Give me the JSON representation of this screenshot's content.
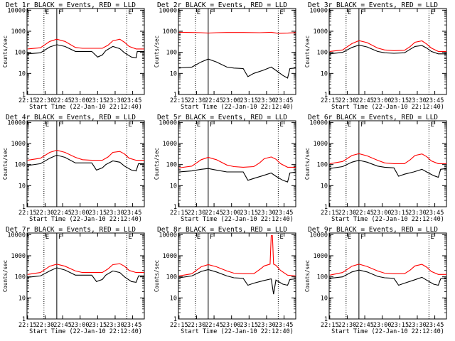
{
  "figure": {
    "xlabel": "Start Time (22-Jan-10 22:12:40)",
    "ylabel": "Counts/sec",
    "xticks": [
      "22:15",
      "22:30",
      "22:45",
      "23:00",
      "23:15",
      "23:30",
      "23:45"
    ],
    "yticks": [
      "1",
      "10",
      "100",
      "1000",
      "10000"
    ],
    "marker_labels": [
      "E",
      "F",
      "E"
    ],
    "colors": {
      "events": "#000000",
      "lld": "#ff0000",
      "axes": "#000000"
    }
  },
  "chart_data": [
    {
      "type": "line",
      "title": "Det 1r BLACK = Events, RED = LLD",
      "x_range_min": [
        2.5,
        103
      ],
      "ylim": [
        1,
        12000
      ],
      "y_scale": "log",
      "markers_min": [
        17,
        28,
        88
      ],
      "series": [
        {
          "name": "Events",
          "color": "#000000",
          "x_min": [
            3,
            14,
            22,
            28,
            35,
            44,
            50,
            58,
            63,
            67,
            70,
            76,
            82,
            86,
            92,
            96,
            97,
            103
          ],
          "values": [
            85,
            95,
            180,
            230,
            190,
            110,
            110,
            110,
            60,
            75,
            120,
            190,
            150,
            95,
            60,
            55,
            110,
            110
          ]
        },
        {
          "name": "LLD",
          "color": "#ff0000",
          "x_min": [
            3,
            14,
            22,
            28,
            35,
            44,
            50,
            58,
            67,
            72,
            76,
            82,
            86,
            90,
            96,
            103
          ],
          "values": [
            145,
            165,
            330,
            420,
            330,
            170,
            155,
            155,
            155,
            220,
            350,
            420,
            300,
            190,
            145,
            145
          ]
        }
      ]
    },
    {
      "type": "line",
      "title": "Det 2r BLACK = Events, RED = LLD",
      "x_range_min": [
        2.5,
        103
      ],
      "ylim": [
        1,
        12000
      ],
      "y_scale": "log",
      "markers_min": [
        17,
        28,
        88
      ],
      "series": [
        {
          "name": "Events",
          "color": "#000000",
          "x_min": [
            3,
            14,
            22,
            28,
            35,
            44,
            50,
            58,
            62,
            67,
            75,
            82,
            86,
            92,
            96,
            98,
            103
          ],
          "values": [
            18,
            20,
            35,
            48,
            35,
            20,
            18,
            17,
            7,
            10,
            14,
            20,
            14,
            8,
            6,
            17,
            18
          ]
        },
        {
          "name": "LLD",
          "color": "#ff0000",
          "x_min": [
            3,
            14,
            22,
            28,
            35,
            44,
            58,
            72,
            82,
            88,
            96,
            103
          ],
          "values": [
            900,
            880,
            860,
            820,
            860,
            880,
            880,
            860,
            900,
            800,
            820,
            870
          ]
        }
      ]
    },
    {
      "type": "line",
      "title": "Det 3r BLACK = Events, RED = LLD",
      "x_range_min": [
        2.5,
        103
      ],
      "ylim": [
        1,
        12000
      ],
      "y_scale": "log",
      "markers_min": [
        17,
        28,
        88
      ],
      "series": [
        {
          "name": "Events",
          "color": "#000000",
          "x_min": [
            3,
            14,
            22,
            28,
            35,
            44,
            50,
            58,
            67,
            72,
            76,
            82,
            86,
            90,
            96,
            103
          ],
          "values": [
            85,
            100,
            170,
            220,
            180,
            110,
            95,
            90,
            95,
            140,
            190,
            210,
            160,
            110,
            85,
            85
          ]
        },
        {
          "name": "LLD",
          "color": "#ff0000",
          "x_min": [
            3,
            14,
            22,
            28,
            35,
            44,
            50,
            58,
            67,
            72,
            76,
            82,
            86,
            90,
            96,
            103
          ],
          "values": [
            110,
            130,
            260,
            360,
            290,
            160,
            130,
            120,
            125,
            190,
            300,
            350,
            250,
            160,
            110,
            110
          ]
        }
      ]
    },
    {
      "type": "line",
      "title": "Det 4r BLACK = Events, RED = LLD",
      "x_range_min": [
        2.5,
        103
      ],
      "ylim": [
        1,
        12000
      ],
      "y_scale": "log",
      "markers_min": [
        17,
        28,
        88
      ],
      "series": [
        {
          "name": "Events",
          "color": "#000000",
          "x_min": [
            3,
            14,
            22,
            28,
            35,
            44,
            50,
            58,
            62,
            67,
            70,
            76,
            82,
            86,
            92,
            96,
            98,
            103
          ],
          "values": [
            90,
            110,
            200,
            280,
            220,
            120,
            120,
            120,
            55,
            70,
            100,
            150,
            130,
            85,
            55,
            50,
            110,
            110
          ]
        },
        {
          "name": "LLD",
          "color": "#ff0000",
          "x_min": [
            3,
            14,
            22,
            28,
            35,
            44,
            50,
            58,
            67,
            72,
            76,
            82,
            86,
            90,
            96,
            103
          ],
          "values": [
            160,
            200,
            380,
            480,
            380,
            220,
            170,
            160,
            160,
            230,
            380,
            420,
            320,
            200,
            160,
            160
          ]
        }
      ]
    },
    {
      "type": "line",
      "title": "Det 5r BLACK = Events, RED = LLD",
      "x_range_min": [
        2.5,
        103
      ],
      "ylim": [
        1,
        12000
      ],
      "y_scale": "log",
      "markers_min": [
        17,
        28,
        88
      ],
      "series": [
        {
          "name": "Events",
          "color": "#000000",
          "x_min": [
            3,
            14,
            22,
            28,
            35,
            44,
            50,
            58,
            62,
            67,
            75,
            82,
            86,
            92,
            96,
            98,
            103
          ],
          "values": [
            45,
            50,
            60,
            65,
            55,
            45,
            45,
            45,
            18,
            22,
            30,
            40,
            28,
            18,
            15,
            40,
            45
          ]
        },
        {
          "name": "LLD",
          "color": "#ff0000",
          "x_min": [
            3,
            14,
            22,
            28,
            35,
            44,
            50,
            58,
            67,
            72,
            76,
            82,
            86,
            90,
            96,
            103
          ],
          "values": [
            70,
            85,
            170,
            220,
            170,
            95,
            80,
            75,
            80,
            120,
            190,
            230,
            180,
            110,
            75,
            75
          ]
        }
      ]
    },
    {
      "type": "line",
      "title": "Det 6r BLACK = Events, RED = LLD",
      "x_range_min": [
        2.5,
        103
      ],
      "ylim": [
        1,
        12000
      ],
      "y_scale": "log",
      "markers_min": [
        17,
        28,
        88
      ],
      "series": [
        {
          "name": "Events",
          "color": "#000000",
          "x_min": [
            3,
            14,
            22,
            28,
            35,
            44,
            50,
            58,
            62,
            67,
            75,
            82,
            86,
            92,
            96,
            98,
            103
          ],
          "values": [
            65,
            80,
            130,
            160,
            130,
            85,
            75,
            70,
            28,
            35,
            45,
            60,
            45,
            30,
            25,
            60,
            65
          ]
        },
        {
          "name": "LLD",
          "color": "#ff0000",
          "x_min": [
            3,
            14,
            22,
            28,
            35,
            44,
            50,
            58,
            67,
            72,
            76,
            82,
            86,
            90,
            96,
            103
          ],
          "values": [
            110,
            140,
            270,
            330,
            260,
            160,
            120,
            110,
            110,
            170,
            270,
            320,
            240,
            150,
            110,
            110
          ]
        }
      ]
    },
    {
      "type": "line",
      "title": "Det 7r BLACK = Events, RED = LLD",
      "x_range_min": [
        2.5,
        103
      ],
      "ylim": [
        1,
        12000
      ],
      "y_scale": "log",
      "markers_min": [
        17,
        28,
        88
      ],
      "series": [
        {
          "name": "Events",
          "color": "#000000",
          "x_min": [
            3,
            14,
            22,
            28,
            35,
            44,
            50,
            58,
            62,
            67,
            70,
            76,
            82,
            86,
            92,
            96,
            98,
            103
          ],
          "values": [
            95,
            110,
            190,
            270,
            210,
            120,
            120,
            120,
            60,
            75,
            120,
            190,
            160,
            100,
            60,
            55,
            110,
            110
          ]
        },
        {
          "name": "LLD",
          "color": "#ff0000",
          "x_min": [
            3,
            14,
            22,
            28,
            35,
            44,
            50,
            58,
            67,
            72,
            76,
            82,
            86,
            90,
            96,
            103
          ],
          "values": [
            130,
            160,
            320,
            400,
            320,
            190,
            160,
            160,
            160,
            240,
            380,
            420,
            320,
            200,
            160,
            160
          ]
        }
      ]
    },
    {
      "type": "line",
      "title": "Det 8r BLACK = Events, RED = LLD",
      "x_range_min": [
        2.5,
        103
      ],
      "ylim": [
        1,
        12000
      ],
      "y_scale": "log",
      "markers_min": [
        17,
        28,
        88
      ],
      "series": [
        {
          "name": "Events",
          "color": "#000000",
          "x_min": [
            3,
            14,
            22,
            28,
            35,
            44,
            50,
            58,
            62,
            67,
            75,
            82,
            84,
            86,
            92,
            96,
            98,
            103
          ],
          "values": [
            90,
            110,
            180,
            220,
            170,
            110,
            90,
            85,
            40,
            50,
            65,
            80,
            15,
            70,
            45,
            40,
            75,
            80
          ]
        },
        {
          "name": "LLD",
          "color": "#ff0000",
          "x_min": [
            3,
            14,
            22,
            28,
            35,
            44,
            50,
            58,
            67,
            72,
            76,
            81,
            82,
            83,
            84,
            86,
            90,
            96,
            103
          ],
          "values": [
            110,
            140,
            300,
            380,
            300,
            190,
            150,
            140,
            140,
            220,
            330,
            400,
            9000,
            9000,
            400,
            350,
            200,
            120,
            110
          ]
        }
      ]
    },
    {
      "type": "line",
      "title": "Det 9r BLACK = Events, RED = LLD",
      "x_range_min": [
        2.5,
        103
      ],
      "ylim": [
        1,
        12000
      ],
      "y_scale": "log",
      "markers_min": [
        17,
        28,
        88
      ],
      "series": [
        {
          "name": "Events",
          "color": "#000000",
          "x_min": [
            3,
            14,
            22,
            28,
            35,
            44,
            50,
            58,
            62,
            67,
            75,
            82,
            86,
            92,
            96,
            98,
            103
          ],
          "values": [
            85,
            100,
            170,
            210,
            170,
            105,
            90,
            85,
            40,
            50,
            70,
            95,
            70,
            45,
            40,
            80,
            85
          ]
        },
        {
          "name": "LLD",
          "color": "#ff0000",
          "x_min": [
            3,
            14,
            22,
            28,
            35,
            44,
            50,
            58,
            67,
            72,
            76,
            82,
            86,
            90,
            96,
            103
          ],
          "values": [
            120,
            160,
            320,
            400,
            310,
            190,
            150,
            140,
            140,
            210,
            330,
            390,
            290,
            180,
            130,
            130
          ]
        }
      ]
    }
  ]
}
